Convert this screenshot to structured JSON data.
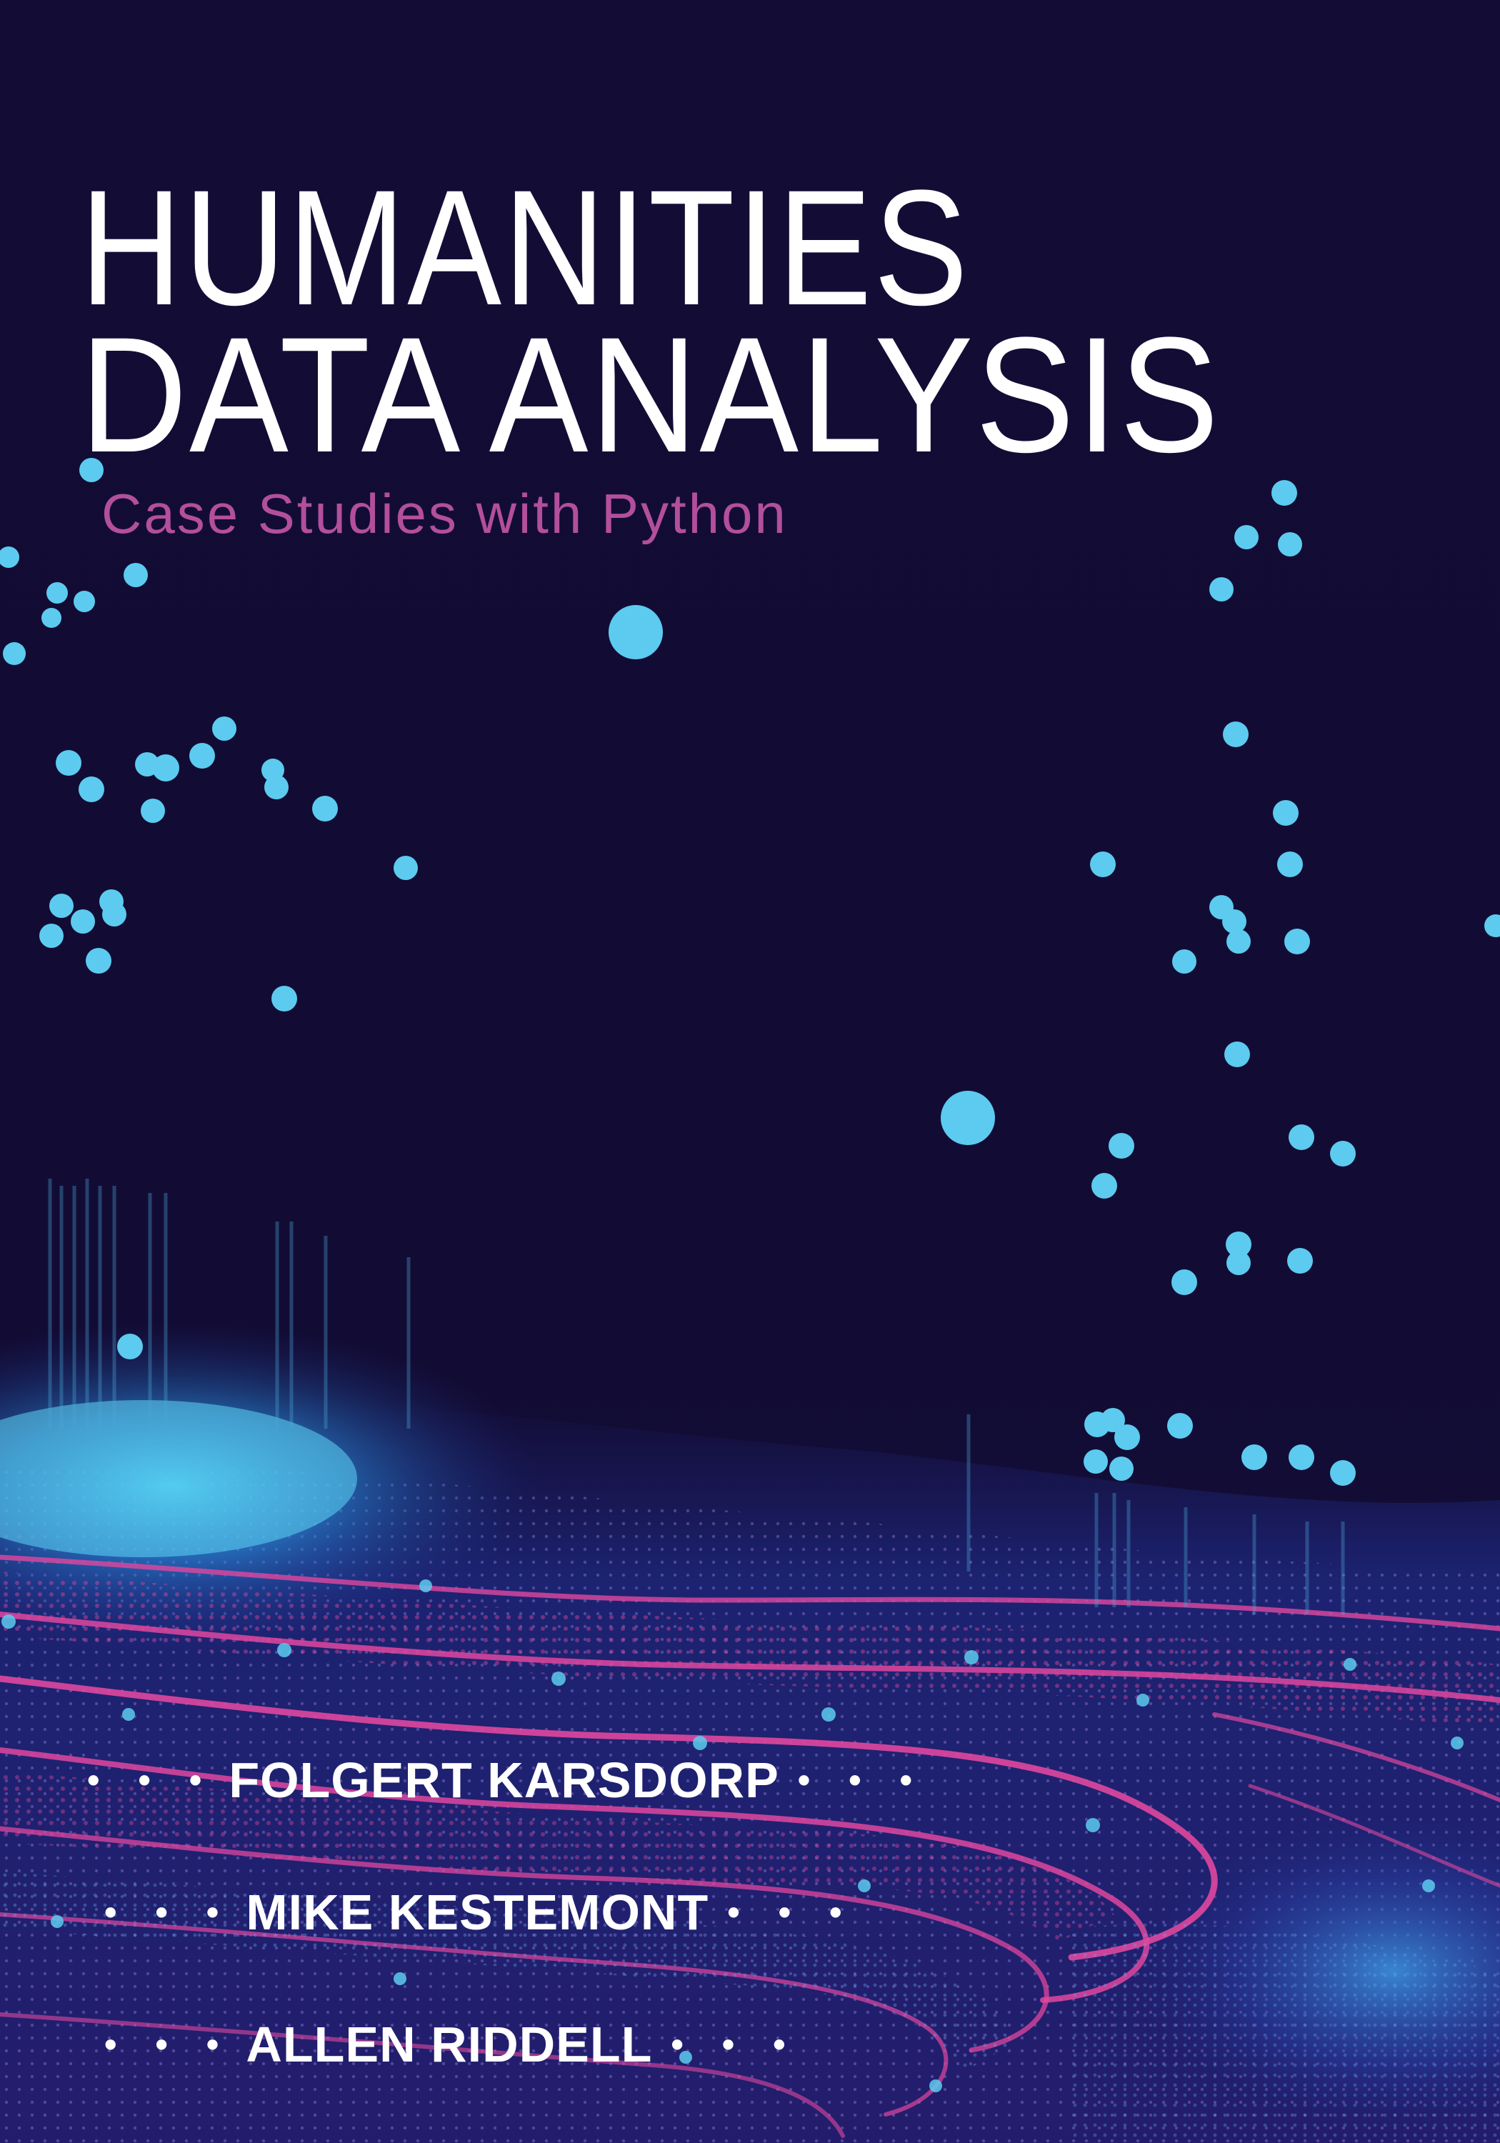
{
  "cover": {
    "title_line1": "HUMANITIES",
    "title_line2": "DATA ANALYSIS",
    "subtitle": "Case Studies with Python",
    "author_separator": "• • •",
    "authors": [
      {
        "name": "FOLGERT KARSDORP"
      },
      {
        "name": "MIKE KESTEMONT"
      },
      {
        "name": "ALLEN RIDDELL"
      }
    ]
  },
  "colors": {
    "background": "#130d36",
    "title": "#ffffff",
    "subtitle": "#b34f9c",
    "cyan_accent": "#5ccbef",
    "magenta_accent": "#e0479f"
  },
  "icons": [
    "data-pin-dot",
    "particle-wave"
  ]
}
